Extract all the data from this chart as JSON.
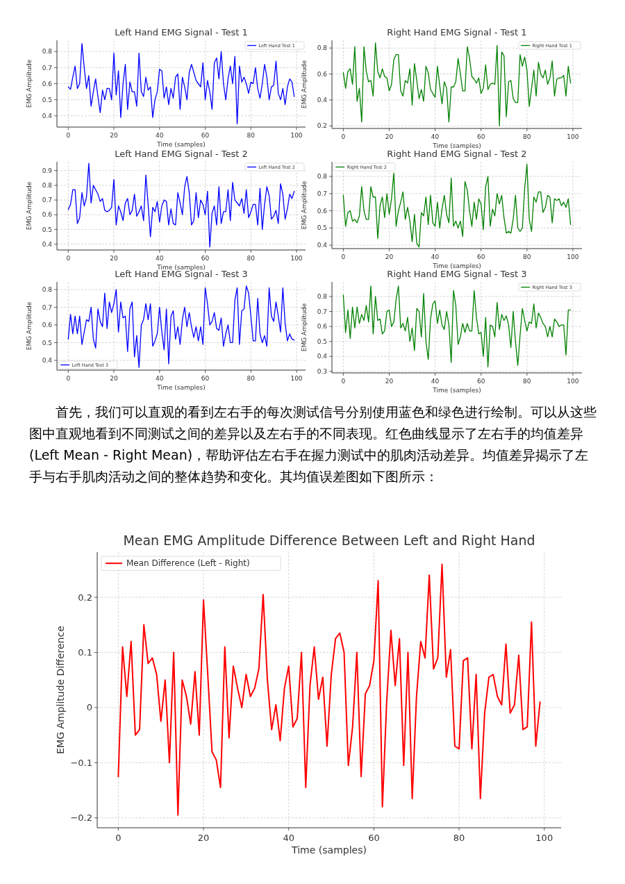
{
  "chart_data": [
    {
      "type": "line",
      "title": "Left Hand EMG Signal - Test 1",
      "xlabel": "Time (samples)",
      "ylabel": "EMG Amplitude",
      "xlim": [
        -4.95,
        103.95
      ],
      "xticks": [
        0,
        20,
        40,
        60,
        80,
        100
      ],
      "ylim": [
        0.33,
        0.87
      ],
      "yticks": [
        0.4,
        0.5,
        0.6,
        0.7,
        0.8
      ],
      "grid": true,
      "legend": "top right",
      "x": [
        0,
        1,
        2,
        3,
        4,
        5,
        6,
        7,
        8,
        9,
        10,
        11,
        12,
        13,
        14,
        15,
        16,
        17,
        18,
        19,
        20,
        21,
        22,
        23,
        24,
        25,
        26,
        27,
        28,
        29,
        30,
        31,
        32,
        33,
        34,
        35,
        36,
        37,
        38,
        39,
        40,
        41,
        42,
        43,
        44,
        45,
        46,
        47,
        48,
        49,
        50,
        51,
        52,
        53,
        54,
        55,
        56,
        57,
        58,
        59,
        60,
        61,
        62,
        63,
        64,
        65,
        66,
        67,
        68,
        69,
        70,
        71,
        72,
        73,
        74,
        75,
        76,
        77,
        78,
        79,
        80,
        81,
        82,
        83,
        84,
        85,
        86,
        87,
        88,
        89,
        90,
        91,
        92,
        93,
        94,
        95,
        96,
        97,
        98,
        99
      ],
      "series": [
        {
          "name": "Left Hand Test 1",
          "color": "#0000ff",
          "values": [
            0.58,
            0.565,
            0.64,
            0.71,
            0.57,
            0.6,
            0.85,
            0.7,
            0.57,
            0.65,
            0.46,
            0.55,
            0.63,
            0.52,
            0.42,
            0.56,
            0.5,
            0.57,
            0.57,
            0.5,
            0.79,
            0.53,
            0.68,
            0.39,
            0.6,
            0.72,
            0.44,
            0.61,
            0.55,
            0.55,
            0.46,
            0.79,
            0.55,
            0.52,
            0.64,
            0.56,
            0.58,
            0.39,
            0.5,
            0.55,
            0.69,
            0.68,
            0.51,
            0.58,
            0.47,
            0.57,
            0.51,
            0.64,
            0.66,
            0.44,
            0.64,
            0.58,
            0.5,
            0.67,
            0.72,
            0.67,
            0.62,
            0.6,
            0.58,
            0.73,
            0.5,
            0.62,
            0.55,
            0.44,
            0.73,
            0.76,
            0.63,
            0.8,
            0.6,
            0.5,
            0.63,
            0.71,
            0.6,
            0.77,
            0.35,
            0.71,
            0.61,
            0.64,
            0.6,
            0.54,
            0.61,
            0.6,
            0.7,
            0.57,
            0.51,
            0.6,
            0.72,
            0.64,
            0.5,
            0.58,
            0.59,
            0.74,
            0.54,
            0.5,
            0.57,
            0.47,
            0.58,
            0.63,
            0.61,
            0.52
          ]
        }
      ]
    },
    {
      "type": "line",
      "title": "Right Hand EMG Signal - Test 1",
      "xlabel": "Time (samples)",
      "ylabel": "EMG Amplitude",
      "xlim": [
        -4.95,
        103.95
      ],
      "xticks": [
        0,
        20,
        40,
        60,
        80,
        100
      ],
      "ylim": [
        0.18,
        0.86
      ],
      "yticks": [
        0.2,
        0.4,
        0.6,
        0.8
      ],
      "grid": true,
      "legend": "top right",
      "x": [
        0,
        1,
        2,
        3,
        4,
        5,
        6,
        7,
        8,
        9,
        10,
        11,
        12,
        13,
        14,
        15,
        16,
        17,
        18,
        19,
        20,
        21,
        22,
        23,
        24,
        25,
        26,
        27,
        28,
        29,
        30,
        31,
        32,
        33,
        34,
        35,
        36,
        37,
        38,
        39,
        40,
        41,
        42,
        43,
        44,
        45,
        46,
        47,
        48,
        49,
        50,
        51,
        52,
        53,
        54,
        55,
        56,
        57,
        58,
        59,
        60,
        61,
        62,
        63,
        64,
        65,
        66,
        67,
        68,
        69,
        70,
        71,
        72,
        73,
        74,
        75,
        76,
        77,
        78,
        79,
        80,
        81,
        82,
        83,
        84,
        85,
        86,
        87,
        88,
        89,
        90,
        91,
        92,
        93,
        94,
        95,
        96,
        97,
        98,
        99
      ],
      "series": [
        {
          "name": "Right Hand Test 1",
          "color": "#008000",
          "values": [
            0.61,
            0.49,
            0.62,
            0.64,
            0.52,
            0.81,
            0.39,
            0.49,
            0.23,
            0.81,
            0.62,
            0.54,
            0.55,
            0.43,
            0.84,
            0.62,
            0.57,
            0.64,
            0.58,
            0.57,
            0.47,
            0.52,
            0.71,
            0.75,
            0.75,
            0.47,
            0.43,
            0.55,
            0.53,
            0.64,
            0.36,
            0.68,
            0.55,
            0.41,
            0.48,
            0.39,
            0.66,
            0.61,
            0.48,
            0.45,
            0.42,
            0.66,
            0.51,
            0.37,
            0.54,
            0.49,
            0.23,
            0.5,
            0.5,
            0.54,
            0.72,
            0.6,
            0.47,
            0.47,
            0.81,
            0.72,
            0.58,
            0.56,
            0.53,
            0.57,
            0.45,
            0.49,
            0.67,
            0.48,
            0.52,
            0.53,
            0.52,
            0.82,
            0.2,
            0.77,
            0.74,
            0.27,
            0.54,
            0.55,
            0.41,
            0.38,
            0.38,
            0.75,
            0.66,
            0.73,
            0.63,
            0.35,
            0.49,
            0.63,
            0.43,
            0.69,
            0.6,
            0.57,
            0.63,
            0.52,
            0.57,
            0.7,
            0.43,
            0.56,
            0.57,
            0.57,
            0.59,
            0.43,
            0.66,
            0.53
          ]
        }
      ]
    },
    {
      "type": "line",
      "title": "Left Hand EMG Signal - Test 2",
      "xlabel": "Time (samples)",
      "ylabel": "EMG Amplitude",
      "xlim": [
        -4.95,
        103.95
      ],
      "xticks": [
        0,
        20,
        40,
        60,
        80,
        100
      ],
      "ylim": [
        0.36,
        0.96
      ],
      "yticks": [
        0.4,
        0.5,
        0.6,
        0.7,
        0.8,
        0.9
      ],
      "grid": true,
      "legend": "top right",
      "x": [
        0,
        1,
        2,
        3,
        4,
        5,
        6,
        7,
        8,
        9,
        10,
        11,
        12,
        13,
        14,
        15,
        16,
        17,
        18,
        19,
        20,
        21,
        22,
        23,
        24,
        25,
        26,
        27,
        28,
        29,
        30,
        31,
        32,
        33,
        34,
        35,
        36,
        37,
        38,
        39,
        40,
        41,
        42,
        43,
        44,
        45,
        46,
        47,
        48,
        49,
        50,
        51,
        52,
        53,
        54,
        55,
        56,
        57,
        58,
        59,
        60,
        61,
        62,
        63,
        64,
        65,
        66,
        67,
        68,
        69,
        70,
        71,
        72,
        73,
        74,
        75,
        76,
        77,
        78,
        79,
        80,
        81,
        82,
        83,
        84,
        85,
        86,
        87,
        88,
        89,
        90,
        91,
        92,
        93,
        94,
        95,
        96,
        97,
        98,
        99
      ],
      "series": [
        {
          "name": "Left Hand Test 2",
          "color": "#0000ff",
          "values": [
            0.635,
            0.67,
            0.77,
            0.77,
            0.54,
            0.58,
            0.75,
            0.66,
            0.72,
            0.95,
            0.68,
            0.8,
            0.77,
            0.74,
            0.69,
            0.71,
            0.63,
            0.62,
            0.63,
            0.65,
            0.84,
            0.53,
            0.66,
            0.62,
            0.56,
            0.68,
            0.71,
            0.6,
            0.63,
            0.74,
            0.59,
            0.62,
            0.66,
            0.56,
            0.87,
            0.67,
            0.45,
            0.65,
            0.62,
            0.69,
            0.55,
            0.66,
            0.7,
            0.69,
            0.53,
            0.64,
            0.54,
            0.53,
            0.75,
            0.68,
            0.6,
            0.79,
            0.86,
            0.75,
            0.53,
            0.56,
            0.75,
            0.58,
            0.7,
            0.67,
            0.6,
            0.76,
            0.38,
            0.61,
            0.66,
            0.53,
            0.79,
            0.54,
            0.62,
            0.62,
            0.77,
            0.56,
            0.82,
            0.7,
            0.68,
            0.66,
            0.71,
            0.61,
            0.77,
            0.58,
            0.62,
            0.67,
            0.67,
            0.53,
            0.78,
            0.5,
            0.67,
            0.79,
            0.73,
            0.57,
            0.59,
            0.63,
            0.54,
            0.81,
            0.74,
            0.57,
            0.64,
            0.74,
            0.71,
            0.76
          ]
        }
      ]
    },
    {
      "type": "line",
      "title": "Right Hand EMG Signal - Test 2",
      "xlabel": "Time (samples)",
      "ylabel": "EMG Amplitude",
      "xlim": [
        -4.95,
        103.95
      ],
      "xticks": [
        0,
        20,
        40,
        60,
        80,
        100
      ],
      "ylim": [
        0.38,
        0.885
      ],
      "yticks": [
        0.4,
        0.5,
        0.6,
        0.7,
        0.8
      ],
      "grid": true,
      "legend": "top left",
      "x": [
        0,
        1,
        2,
        3,
        4,
        5,
        6,
        7,
        8,
        9,
        10,
        11,
        12,
        13,
        14,
        15,
        16,
        17,
        18,
        19,
        20,
        21,
        22,
        23,
        24,
        25,
        26,
        27,
        28,
        29,
        30,
        31,
        32,
        33,
        34,
        35,
        36,
        37,
        38,
        39,
        40,
        41,
        42,
        43,
        44,
        45,
        46,
        47,
        48,
        49,
        50,
        51,
        52,
        53,
        54,
        55,
        56,
        57,
        58,
        59,
        60,
        61,
        62,
        63,
        64,
        65,
        66,
        67,
        68,
        69,
        70,
        71,
        72,
        73,
        74,
        75,
        76,
        77,
        78,
        79,
        80,
        81,
        82,
        83,
        84,
        85,
        86,
        87,
        88,
        89,
        90,
        91,
        92,
        93,
        94,
        95,
        96,
        97,
        98,
        99
      ],
      "series": [
        {
          "name": "Right Hand Test 2",
          "color": "#008000",
          "values": [
            0.69,
            0.51,
            0.59,
            0.6,
            0.54,
            0.55,
            0.53,
            0.57,
            0.74,
            0.6,
            0.55,
            0.55,
            0.74,
            0.68,
            0.68,
            0.44,
            0.63,
            0.68,
            0.56,
            0.7,
            0.58,
            0.67,
            0.82,
            0.51,
            0.6,
            0.65,
            0.71,
            0.55,
            0.62,
            0.54,
            0.42,
            0.58,
            0.41,
            0.39,
            0.59,
            0.57,
            0.68,
            0.52,
            0.69,
            0.53,
            0.51,
            0.65,
            0.5,
            0.61,
            0.69,
            0.58,
            0.53,
            0.79,
            0.51,
            0.54,
            0.5,
            0.54,
            0.45,
            0.77,
            0.72,
            0.6,
            0.51,
            0.65,
            0.55,
            0.67,
            0.64,
            0.49,
            0.74,
            0.8,
            0.51,
            0.61,
            0.57,
            0.7,
            0.64,
            0.69,
            0.56,
            0.47,
            0.48,
            0.47,
            0.55,
            0.69,
            0.5,
            0.48,
            0.5,
            0.73,
            0.87,
            0.55,
            0.48,
            0.68,
            0.65,
            0.71,
            0.71,
            0.59,
            0.62,
            0.69,
            0.68,
            0.53,
            0.67,
            0.66,
            0.67,
            0.63,
            0.65,
            0.62,
            0.67,
            0.52
          ]
        }
      ]
    },
    {
      "type": "line",
      "title": "Left Hand EMG Signal - Test 3",
      "xlabel": "Time (samples)",
      "ylabel": "EMG Amplitude",
      "xlim": [
        -4.95,
        103.95
      ],
      "xticks": [
        0,
        20,
        40,
        60,
        80,
        100
      ],
      "ylim": [
        0.345,
        0.843
      ],
      "yticks": [
        0.4,
        0.5,
        0.6,
        0.7,
        0.8
      ],
      "grid": true,
      "legend": "bottom left",
      "x": [
        0,
        1,
        2,
        3,
        4,
        5,
        6,
        7,
        8,
        9,
        10,
        11,
        12,
        13,
        14,
        15,
        16,
        17,
        18,
        19,
        20,
        21,
        22,
        23,
        24,
        25,
        26,
        27,
        28,
        29,
        30,
        31,
        32,
        33,
        34,
        35,
        36,
        37,
        38,
        39,
        40,
        41,
        42,
        43,
        44,
        45,
        46,
        47,
        48,
        49,
        50,
        51,
        52,
        53,
        54,
        55,
        56,
        57,
        58,
        59,
        60,
        61,
        62,
        63,
        64,
        65,
        66,
        67,
        68,
        69,
        70,
        71,
        72,
        73,
        74,
        75,
        76,
        77,
        78,
        79,
        80,
        81,
        82,
        83,
        84,
        85,
        86,
        87,
        88,
        89,
        90,
        91,
        92,
        93,
        94,
        95,
        96,
        97,
        98,
        99
      ],
      "series": [
        {
          "name": "Left Hand Test 3",
          "color": "#0000ff",
          "values": [
            0.52,
            0.66,
            0.55,
            0.65,
            0.55,
            0.65,
            0.49,
            0.56,
            0.63,
            0.62,
            0.7,
            0.52,
            0.47,
            0.69,
            0.62,
            0.59,
            0.78,
            0.58,
            0.73,
            0.67,
            0.72,
            0.8,
            0.56,
            0.73,
            0.64,
            0.65,
            0.45,
            0.69,
            0.73,
            0.42,
            0.54,
            0.36,
            0.6,
            0.63,
            0.72,
            0.63,
            0.72,
            0.48,
            0.51,
            0.55,
            0.7,
            0.56,
            0.46,
            0.69,
            0.38,
            0.65,
            0.68,
            0.52,
            0.59,
            0.49,
            0.63,
            0.7,
            0.59,
            0.67,
            0.59,
            0.53,
            0.59,
            0.51,
            0.59,
            0.49,
            0.81,
            0.72,
            0.6,
            0.62,
            0.67,
            0.58,
            0.57,
            0.64,
            0.48,
            0.55,
            0.6,
            0.5,
            0.5,
            0.74,
            0.81,
            0.49,
            0.68,
            0.69,
            0.82,
            0.78,
            0.65,
            0.51,
            0.51,
            0.75,
            0.55,
            0.5,
            0.54,
            0.48,
            0.81,
            0.65,
            0.62,
            0.73,
            0.65,
            0.56,
            0.81,
            0.61,
            0.51,
            0.55,
            0.52,
            0.515
          ]
        }
      ]
    },
    {
      "type": "line",
      "title": "Right Hand EMG Signal - Test 3",
      "xlabel": "Time (samples)",
      "ylabel": "EMG Amplitude",
      "xlim": [
        -4.95,
        103.95
      ],
      "xticks": [
        0,
        20,
        40,
        60,
        80,
        100
      ],
      "ylim": [
        0.29,
        0.897
      ],
      "yticks": [
        0.3,
        0.4,
        0.5,
        0.6,
        0.7,
        0.8
      ],
      "grid": true,
      "legend": "top right",
      "x": [
        0,
        1,
        2,
        3,
        4,
        5,
        6,
        7,
        8,
        9,
        10,
        11,
        12,
        13,
        14,
        15,
        16,
        17,
        18,
        19,
        20,
        21,
        22,
        23,
        24,
        25,
        26,
        27,
        28,
        29,
        30,
        31,
        32,
        33,
        34,
        35,
        36,
        37,
        38,
        39,
        40,
        41,
        42,
        43,
        44,
        45,
        46,
        47,
        48,
        49,
        50,
        51,
        52,
        53,
        54,
        55,
        56,
        57,
        58,
        59,
        60,
        61,
        62,
        63,
        64,
        65,
        66,
        67,
        68,
        69,
        70,
        71,
        72,
        73,
        74,
        75,
        76,
        77,
        78,
        79,
        80,
        81,
        82,
        83,
        84,
        85,
        86,
        87,
        88,
        89,
        90,
        91,
        92,
        93,
        94,
        95,
        96,
        97,
        98,
        99
      ],
      "series": [
        {
          "name": "Right Hand Test 3",
          "color": "#008000",
          "values": [
            0.81,
            0.56,
            0.71,
            0.52,
            0.73,
            0.59,
            0.73,
            0.62,
            0.68,
            0.64,
            0.74,
            0.63,
            0.87,
            0.55,
            0.8,
            0.64,
            0.65,
            0.55,
            0.57,
            0.7,
            0.71,
            0.6,
            0.63,
            0.78,
            0.87,
            0.59,
            0.62,
            0.57,
            0.66,
            0.5,
            0.59,
            0.44,
            0.72,
            0.7,
            0.53,
            0.82,
            0.5,
            0.38,
            0.65,
            0.75,
            0.77,
            0.62,
            0.71,
            0.61,
            0.58,
            0.7,
            0.61,
            0.36,
            0.84,
            0.74,
            0.48,
            0.53,
            0.62,
            0.56,
            0.62,
            0.57,
            0.57,
            0.84,
            0.66,
            0.55,
            0.56,
            0.4,
            0.66,
            0.33,
            0.61,
            0.6,
            0.53,
            0.76,
            0.58,
            0.68,
            0.64,
            0.67,
            0.61,
            0.46,
            0.7,
            0.5,
            0.34,
            0.54,
            0.72,
            0.64,
            0.57,
            0.63,
            0.62,
            0.75,
            0.59,
            0.69,
            0.66,
            0.62,
            0.6,
            0.53,
            0.6,
            0.53,
            0.65,
            0.63,
            0.6,
            0.61,
            0.61,
            0.41,
            0.71,
            0.71
          ]
        }
      ]
    },
    {
      "type": "line",
      "title": "Mean EMG Amplitude Difference Between Left and Right Hand",
      "xlabel": "Time (samples)",
      "ylabel": "EMG Amplitude Difference",
      "xlim": [
        -4.95,
        103.95
      ],
      "xticks": [
        0,
        20,
        40,
        60,
        80,
        100
      ],
      "ylim": [
        -0.218,
        0.282
      ],
      "yticks": [
        {
          "value": -0.2,
          "label": "−0.2"
        },
        {
          "value": -0.1,
          "label": "−0.1"
        },
        0.0,
        0.1,
        0.2
      ],
      "grid": true,
      "legend": "top left",
      "annotations": [
        "首先，我们可以直观的看到左右手的每次测试信号分别使用蓝色和绿色进行绘制。可以从这些图中直观地看到不同测试之间的差异以及左右手的不同表现。红色曲线显示了左右手的均值差异 (Left Mean - Right Mean)，帮助评估左右手在握力测试中的肌肉活动差异。均值差异揭示了左手与右手肌肉活动之间的整体趋势和变化。其均值误差图如下图所示："
      ],
      "x": [
        0,
        1,
        2,
        3,
        4,
        5,
        6,
        7,
        8,
        9,
        10,
        11,
        12,
        13,
        14,
        15,
        16,
        17,
        18,
        19,
        20,
        21,
        22,
        23,
        24,
        25,
        26,
        27,
        28,
        29,
        30,
        31,
        32,
        33,
        34,
        35,
        36,
        37,
        38,
        39,
        40,
        41,
        42,
        43,
        44,
        45,
        46,
        47,
        48,
        49,
        50,
        51,
        52,
        53,
        54,
        55,
        56,
        57,
        58,
        59,
        60,
        61,
        62,
        63,
        64,
        65,
        66,
        67,
        68,
        69,
        70,
        71,
        72,
        73,
        74,
        75,
        76,
        77,
        78,
        79,
        80,
        81,
        82,
        83,
        84,
        85,
        86,
        87,
        88,
        89,
        90,
        91,
        92,
        93,
        94,
        95,
        96,
        97,
        98,
        99
      ],
      "series": [
        {
          "name": "Mean Difference (Left - Right)",
          "color": "#ff0000",
          "values": [
            -0.125,
            0.11,
            0.02,
            0.12,
            -0.05,
            -0.04,
            0.15,
            0.08,
            0.09,
            0.06,
            -0.025,
            0.05,
            -0.1,
            0.1,
            -0.195,
            0.05,
            0.02,
            -0.03,
            0.065,
            -0.05,
            0.195,
            0.06,
            -0.08,
            -0.095,
            -0.145,
            0.11,
            -0.055,
            0.075,
            0.035,
            0.0,
            0.06,
            0.02,
            0.035,
            0.07,
            0.205,
            0.05,
            -0.04,
            0.005,
            -0.06,
            0.035,
            0.075,
            -0.035,
            -0.02,
            0.1,
            -0.145,
            0.04,
            0.11,
            0.015,
            0.055,
            -0.07,
            0.06,
            0.125,
            0.135,
            0.1,
            -0.105,
            -0.035,
            0.1,
            -0.125,
            0.025,
            0.04,
            0.085,
            0.23,
            -0.18,
            0.01,
            0.14,
            0.04,
            0.125,
            -0.105,
            0.1,
            -0.165,
            0.02,
            0.12,
            0.09,
            0.24,
            0.07,
            0.09,
            0.26,
            0.055,
            0.105,
            -0.07,
            -0.075,
            0.085,
            0.09,
            -0.075,
            0.06,
            -0.165,
            -0.01,
            0.055,
            0.06,
            0.02,
            0.005,
            0.115,
            -0.01,
            0.005,
            0.095,
            -0.04,
            -0.035,
            0.155,
            -0.07,
            0.01
          ]
        }
      ]
    }
  ]
}
